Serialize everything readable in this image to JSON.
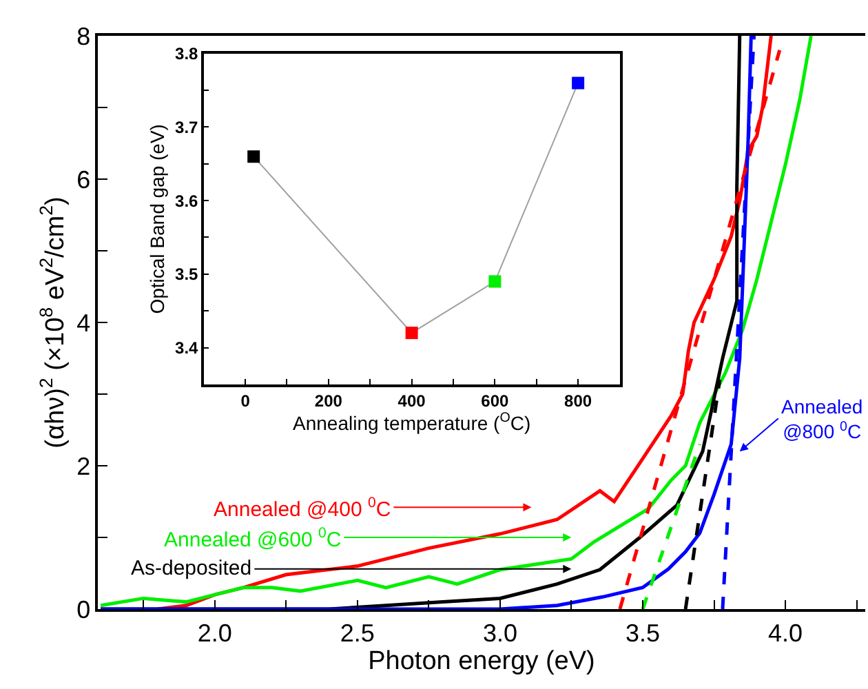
{
  "chart_data": [
    {
      "type": "line",
      "xlabel": "Photon energy (eV)",
      "ylabel": "(αhν)$^{2}$ (×10$^{8}$ eV$^{2}$/cm$^{2}$)",
      "xlim": [
        1.59,
        4.28
      ],
      "xticks": [
        {
          "value": 1.75,
          "label": null
        },
        {
          "value": 2,
          "label": "2.0"
        },
        {
          "value": 2.25,
          "label": null
        },
        2.5,
        {
          "value": 2.75,
          "label": null
        },
        {
          "value": 3,
          "label": "3.0"
        },
        {
          "value": 3.25,
          "label": null
        },
        3.5,
        {
          "value": 3.75,
          "label": null
        },
        {
          "value": 4,
          "label": "4.0"
        },
        {
          "value": 4.25,
          "label": null
        }
      ],
      "ylim": [
        0,
        8
      ],
      "yticks": [
        0,
        {
          "value": 1,
          "label": null
        },
        2,
        {
          "value": 3,
          "label": null
        },
        4,
        {
          "value": 5,
          "label": null
        },
        6,
        {
          "value": 7,
          "label": null
        },
        8
      ],
      "marker": "none",
      "series": [
        {
          "color": "#ff0000",
          "x": [
            1.8,
            1.9,
            2.0,
            2.1,
            2.25,
            2.5,
            2.75,
            3.0,
            3.2,
            3.35,
            3.4,
            3.5,
            3.6,
            3.64,
            3.66,
            3.68,
            3.75,
            3.81,
            3.84,
            3.87,
            3.9,
            3.92,
            3.95
          ],
          "values": [
            0.0,
            0.05,
            0.2,
            0.3,
            0.48,
            0.6,
            0.85,
            1.05,
            1.25,
            1.65,
            1.5,
            2.1,
            2.7,
            3.0,
            3.6,
            4.0,
            4.6,
            5.2,
            5.7,
            6.4,
            6.6,
            7.0,
            8.0
          ]
        },
        {
          "color": "#00ee00",
          "x": [
            1.6,
            1.75,
            1.9,
            2.0,
            2.1,
            2.2,
            2.3,
            2.5,
            2.6,
            2.75,
            2.85,
            3.0,
            3.25,
            3.33,
            3.52,
            3.6,
            3.65,
            3.7,
            3.79,
            3.85,
            3.9,
            3.95,
            4.0,
            4.05,
            4.09
          ],
          "values": [
            0.05,
            0.15,
            0.1,
            0.2,
            0.3,
            0.3,
            0.25,
            0.4,
            0.3,
            0.45,
            0.35,
            0.55,
            0.7,
            0.94,
            1.4,
            1.8,
            2.0,
            2.6,
            3.3,
            3.9,
            4.6,
            5.4,
            6.2,
            7.1,
            8.0
          ]
        },
        {
          "color": "#000000",
          "x": [
            1.6,
            2.4,
            2.6,
            2.8,
            3.0,
            3.2,
            3.35,
            3.49,
            3.62,
            3.71,
            3.78,
            3.83,
            3.83,
            3.84
          ],
          "values": [
            0.0,
            0.0,
            0.05,
            0.1,
            0.15,
            0.35,
            0.55,
            1.0,
            1.45,
            2.2,
            3.5,
            4.3,
            5.9,
            8.0
          ]
        },
        {
          "color": "#0000ff",
          "x": [
            1.6,
            3.0,
            3.2,
            3.36,
            3.5,
            3.59,
            3.65,
            3.7,
            3.75,
            3.81,
            3.84,
            3.85,
            3.87,
            3.88
          ],
          "values": [
            0.0,
            0.0,
            0.05,
            0.17,
            0.3,
            0.56,
            0.8,
            1.06,
            1.6,
            2.3,
            3.5,
            4.5,
            6.6,
            8.0
          ]
        },
        {
          "color": "#ff0000",
          "line_style": "dashed",
          "x": [
            3.42,
            3.98
          ],
          "values": [
            0,
            7.8
          ]
        },
        {
          "color": "#00ee00",
          "line_style": "dashed",
          "x": [
            3.5,
            3.7
          ],
          "values": [
            0,
            2.3
          ]
        },
        {
          "color": "#000000",
          "line_style": "dashed",
          "x": [
            3.65,
            3.77
          ],
          "values": [
            0,
            3.2
          ]
        },
        {
          "color": "#0000ff",
          "line_style": "dashed",
          "x": [
            3.78,
            3.89
          ],
          "values": [
            0,
            8.0
          ]
        }
      ],
      "annotations": [
        "Annealed @400 $^{0}$C",
        "Annealed @600 $^{0}$C",
        "As-deposited",
        {
          "text": "Annealed\n@800 $^{0}$C",
          "x": 3.84,
          "y": 2.2
        }
      ]
    },
    {
      "type": "line",
      "xlabel": "Annealing temperature ($^{O}$C)",
      "ylabel": "Optical Band gap (eV)",
      "xlim": [
        -100,
        900
      ],
      "xticks": [
        0,
        {
          "value": 100,
          "label": null
        },
        200,
        {
          "value": 300,
          "label": null
        },
        400,
        {
          "value": 500,
          "label": null
        },
        600,
        {
          "value": 700,
          "label": null
        },
        800
      ],
      "ylim": [
        3.35,
        3.8
      ],
      "yticks": [
        3.4,
        {
          "value": 3.45,
          "label": null
        },
        3.5,
        {
          "value": 3.55,
          "label": null
        },
        3.6,
        {
          "value": 3.65,
          "label": null
        },
        3.7,
        {
          "value": 3.75,
          "label": null
        },
        3.8
      ],
      "marker": "square",
      "series": [
        {
          "color": "#a0a0a0",
          "colors": [
            "#000000",
            "#ff0000",
            "#00ee00",
            "#0000ff"
          ],
          "x": [
            20,
            400,
            600,
            800
          ],
          "values": [
            3.66,
            3.42,
            3.49,
            3.76
          ]
        }
      ]
    }
  ]
}
